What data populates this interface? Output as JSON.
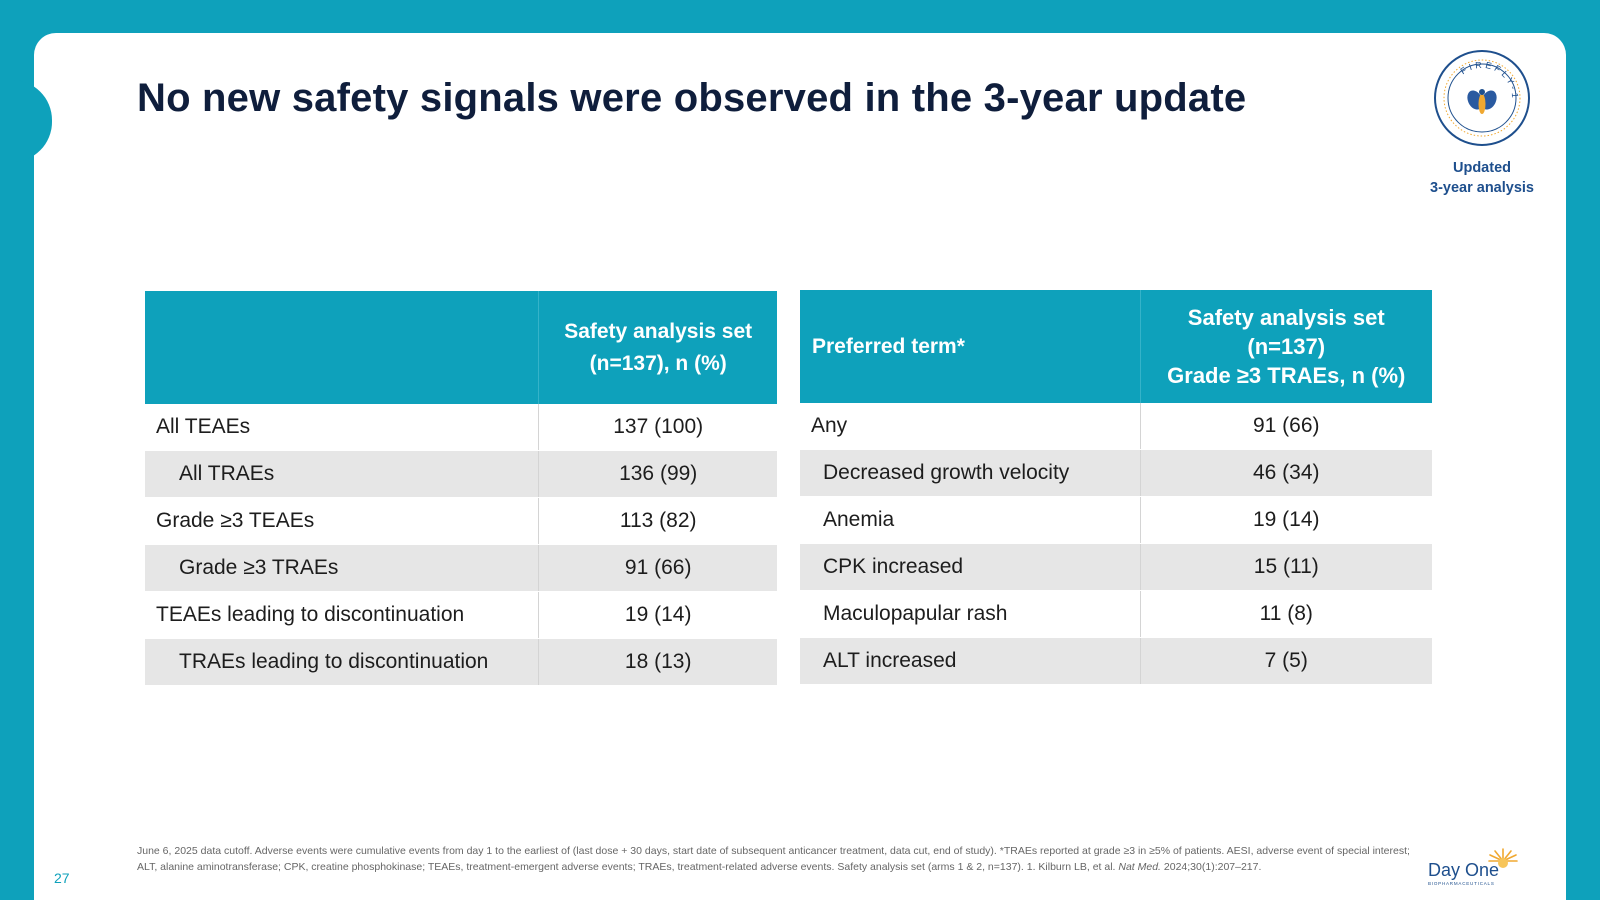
{
  "slide": {
    "title": "No new safety signals were observed in the 3-year update",
    "badge": {
      "ring_text": "FIREFLY-1",
      "line1": "Updated",
      "line2": "3-year analysis"
    },
    "page_number": "27"
  },
  "left_table": {
    "headers": [
      "",
      "Safety analysis set (n=137), n (%)"
    ],
    "rows": [
      {
        "label": "All TEAEs",
        "value": "137 (100)"
      },
      {
        "label": "All TRAEs",
        "value": "136 (99)"
      },
      {
        "label": "Grade ≥3 TEAEs",
        "value": "113 (82)"
      },
      {
        "label": "Grade ≥3 TRAEs",
        "value": "91 (66)"
      },
      {
        "label": "TEAEs leading to discontinuation",
        "value": "19 (14)"
      },
      {
        "label": "TRAEs leading to discontinuation",
        "value": "18 (13)"
      }
    ]
  },
  "right_table": {
    "headers": [
      "Preferred term*",
      "Safety analysis set (n=137) Grade ≥3 TRAEs, n (%)"
    ],
    "header_lines": [
      "Safety analysis set",
      "(n=137)",
      "Grade ≥3 TRAEs, n (%)"
    ],
    "rows": [
      {
        "label": "Any",
        "value": "91 (66)"
      },
      {
        "label": "Decreased growth velocity",
        "value": "46 (34)"
      },
      {
        "label": "Anemia",
        "value": "19 (14)"
      },
      {
        "label": "CPK increased",
        "value": "15 (11)"
      },
      {
        "label": "Maculopapular rash",
        "value": "11 (8)"
      },
      {
        "label": "ALT increased",
        "value": "7 (5)"
      }
    ]
  },
  "footnote": {
    "text": "June 6, 2025 data cutoff. Adverse events were cumulative events from day 1 to the earliest of (last dose + 30 days, start date of subsequent anticancer treatment, data cut, end of study). *TRAEs reported at grade ≥3 in ≥5% of patients.  AESI, adverse event of special interest; ALT, alanine aminotransferase; CPK, creatine phosphokinase; TEAEs, treatment-emergent adverse events; TRAEs, treatment-related adverse events.  Safety analysis set (arms 1 & 2, n=137).  1. Kilburn LB, et al. ",
    "journal": "Nat Med.",
    "citation": " 2024;30(1):207–217."
  },
  "logo": {
    "name": "Day One",
    "sub": "BIOPHARMACEUTICALS"
  },
  "colors": {
    "accent": "#0ea1bb",
    "title": "#0f1e3c",
    "brand_blue": "#1e4f8d",
    "row_alt": "#e6e6e6"
  }
}
